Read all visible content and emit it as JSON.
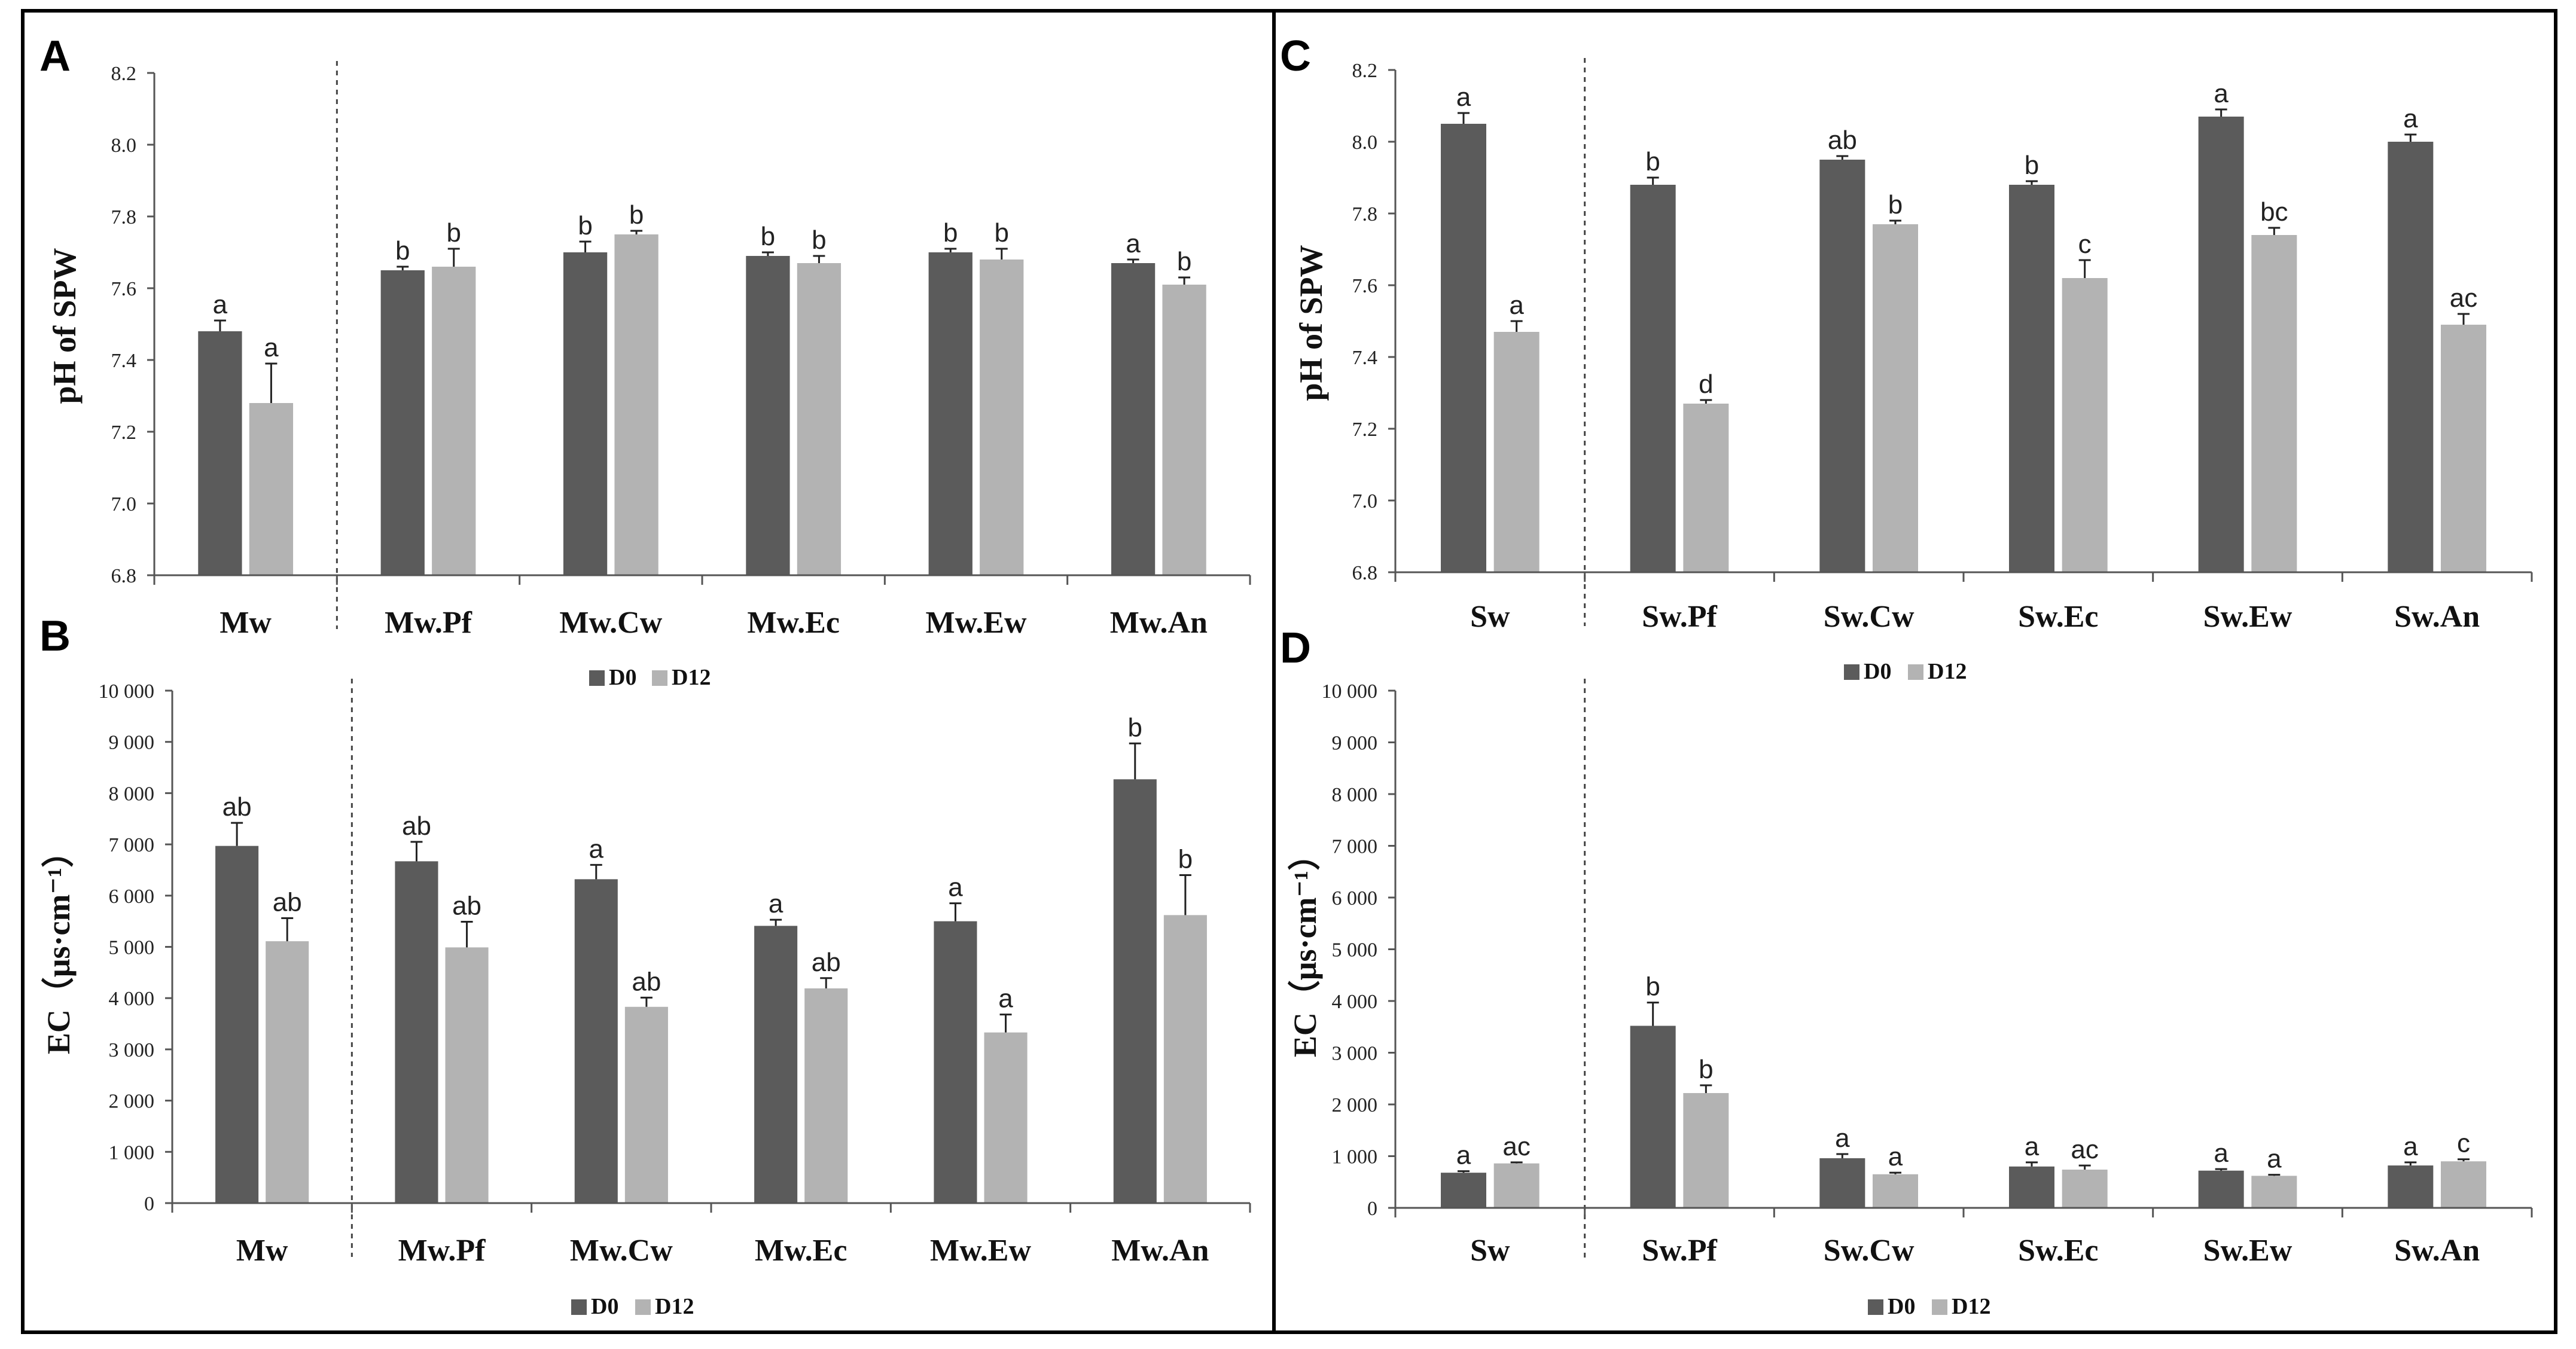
{
  "colors": {
    "d0": "#5b5b5b",
    "d12": "#b3b3b3",
    "axis": "#555555",
    "frame": "#000000"
  },
  "chart_data": [
    {
      "id": "A",
      "panel_label": "A",
      "type": "bar",
      "ylabel": "pH of SPW",
      "ylim": [
        6.8,
        8.2
      ],
      "yticks": [
        6.8,
        7.0,
        7.2,
        7.4,
        7.6,
        7.8,
        8.0,
        8.2
      ],
      "tick_labels": [
        "6.8",
        "7.0",
        "7.2",
        "7.4",
        "7.6",
        "7.8",
        "8.0",
        "8.2"
      ],
      "categories": [
        "Mw",
        "Mw.Pf",
        "Mw.Cw",
        "Mw.Ec",
        "Mw.Ew",
        "Mw.An"
      ],
      "legend": [
        "D0",
        "D12"
      ],
      "divider_after": 0,
      "series": [
        {
          "name": "D0",
          "values": [
            7.48,
            7.65,
            7.7,
            7.69,
            7.7,
            7.67
          ],
          "errors": [
            0.03,
            0.01,
            0.03,
            0.01,
            0.01,
            0.01
          ],
          "letters": [
            "a",
            "b",
            "b",
            "b",
            "b",
            "a"
          ]
        },
        {
          "name": "D12",
          "values": [
            7.28,
            7.66,
            7.75,
            7.67,
            7.68,
            7.61
          ],
          "errors": [
            0.11,
            0.05,
            0.01,
            0.02,
            0.03,
            0.02
          ],
          "letters": [
            "a",
            "b",
            "b",
            "b",
            "b",
            "b"
          ]
        }
      ]
    },
    {
      "id": "B",
      "panel_label": "B",
      "type": "bar",
      "ylabel": "EC（μs·cm⁻¹）",
      "ylim": [
        0,
        10000
      ],
      "yticks": [
        0,
        1000,
        2000,
        3000,
        4000,
        5000,
        6000,
        7000,
        8000,
        9000,
        10000
      ],
      "tick_labels": [
        "0",
        "1 000",
        "2 000",
        "3 000",
        "4 000",
        "5 000",
        "6 000",
        "7 000",
        "8 000",
        "9 000",
        "10 000"
      ],
      "categories": [
        "Mw",
        "Mw.Pf",
        "Mw.Cw",
        "Mw.Ec",
        "Mw.Ew",
        "Mw.An"
      ],
      "legend": [
        "D0",
        "D12"
      ],
      "divider_after": 0,
      "series": [
        {
          "name": "D0",
          "values": [
            6970,
            6670,
            6320,
            5410,
            5500,
            8270
          ],
          "errors": [
            450,
            380,
            280,
            120,
            350,
            700
          ],
          "letters": [
            "ab",
            "ab",
            "a",
            "a",
            "a",
            "b"
          ]
        },
        {
          "name": "D12",
          "values": [
            5110,
            4990,
            3830,
            4190,
            3330,
            5620
          ],
          "errors": [
            450,
            500,
            180,
            200,
            350,
            780
          ],
          "letters": [
            "ab",
            "ab",
            "ab",
            "ab",
            "a",
            "b"
          ]
        }
      ]
    },
    {
      "id": "C",
      "panel_label": "C",
      "type": "bar",
      "ylabel": "pH of SPW",
      "ylim": [
        6.8,
        8.2
      ],
      "yticks": [
        6.8,
        7.0,
        7.2,
        7.4,
        7.6,
        7.8,
        8.0,
        8.2
      ],
      "tick_labels": [
        "6.8",
        "7.0",
        "7.2",
        "7.4",
        "7.6",
        "7.8",
        "8.0",
        "8.2"
      ],
      "categories": [
        "Sw",
        "Sw.Pf",
        "Sw.Cw",
        "Sw.Ec",
        "Sw.Ew",
        "Sw.An"
      ],
      "legend": [
        "D0",
        "D12"
      ],
      "divider_after": 0,
      "series": [
        {
          "name": "D0",
          "values": [
            8.05,
            7.88,
            7.95,
            7.88,
            8.07,
            8.0
          ],
          "errors": [
            0.03,
            0.02,
            0.01,
            0.01,
            0.02,
            0.02
          ],
          "letters": [
            "a",
            "b",
            "ab",
            "b",
            "a",
            "a"
          ]
        },
        {
          "name": "D12",
          "values": [
            7.47,
            7.27,
            7.77,
            7.62,
            7.74,
            7.49
          ],
          "errors": [
            0.03,
            0.01,
            0.01,
            0.05,
            0.02,
            0.03
          ],
          "letters": [
            "a",
            "d",
            "b",
            "c",
            "bc",
            "ac"
          ]
        }
      ]
    },
    {
      "id": "D",
      "panel_label": "D",
      "type": "bar",
      "ylabel": "EC（μs·cm⁻¹）",
      "ylim": [
        0,
        10000
      ],
      "yticks": [
        0,
        1000,
        2000,
        3000,
        4000,
        5000,
        6000,
        7000,
        8000,
        9000,
        10000
      ],
      "tick_labels": [
        "0",
        "1 000",
        "2 000",
        "3 000",
        "4 000",
        "5 000",
        "6 000",
        "7 000",
        "8 000",
        "9 000",
        "10 000"
      ],
      "categories": [
        "Sw",
        "Sw.Pf",
        "Sw.Cw",
        "Sw.Ec",
        "Sw.Ew",
        "Sw.An"
      ],
      "legend": [
        "D0",
        "D12"
      ],
      "divider_after": 0,
      "series": [
        {
          "name": "D0",
          "values": [
            680,
            3520,
            960,
            800,
            720,
            820
          ],
          "errors": [
            30,
            450,
            80,
            80,
            30,
            60
          ],
          "letters": [
            "a",
            "b",
            "a",
            "a",
            "a",
            "a"
          ]
        },
        {
          "name": "D12",
          "values": [
            860,
            2220,
            650,
            740,
            620,
            900
          ],
          "errors": [
            20,
            150,
            30,
            80,
            20,
            40
          ],
          "letters": [
            "ac",
            "b",
            "a",
            "ac",
            "a",
            "c"
          ]
        }
      ]
    }
  ]
}
